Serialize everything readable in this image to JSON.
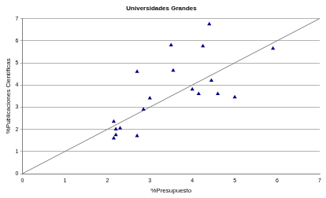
{
  "chart_data": {
    "type": "scatter",
    "title": "Universidades Grandes",
    "x_label": "%Presupuesto",
    "y_label": "%Publicaciones Científicas",
    "xlim": [
      0,
      7
    ],
    "xticks": [
      0,
      1,
      2,
      3,
      4,
      5,
      6,
      7
    ],
    "ylim": [
      0,
      7
    ],
    "yticks": [
      0,
      1,
      2,
      3,
      4,
      5,
      6,
      7
    ],
    "grid": "y",
    "series": [
      {
        "type": "scatter",
        "marker": "triangle",
        "color": "#000080",
        "x": [
          2.15,
          2.2,
          2.2,
          2.15,
          2.3,
          2.7,
          2.7,
          2.85,
          3.0,
          3.5,
          3.55,
          4.0,
          4.15,
          4.25,
          4.4,
          4.45,
          4.6,
          5.0,
          5.9
        ],
        "values": [
          2.35,
          2.0,
          1.75,
          1.6,
          2.05,
          4.6,
          1.7,
          2.9,
          3.4,
          5.8,
          4.65,
          3.8,
          3.6,
          5.75,
          6.75,
          4.2,
          3.6,
          3.45,
          5.65
        ]
      },
      {
        "type": "line",
        "line_style": "solid",
        "color": "#808080",
        "x": [
          0,
          7
        ],
        "values": [
          0,
          7
        ]
      }
    ]
  }
}
